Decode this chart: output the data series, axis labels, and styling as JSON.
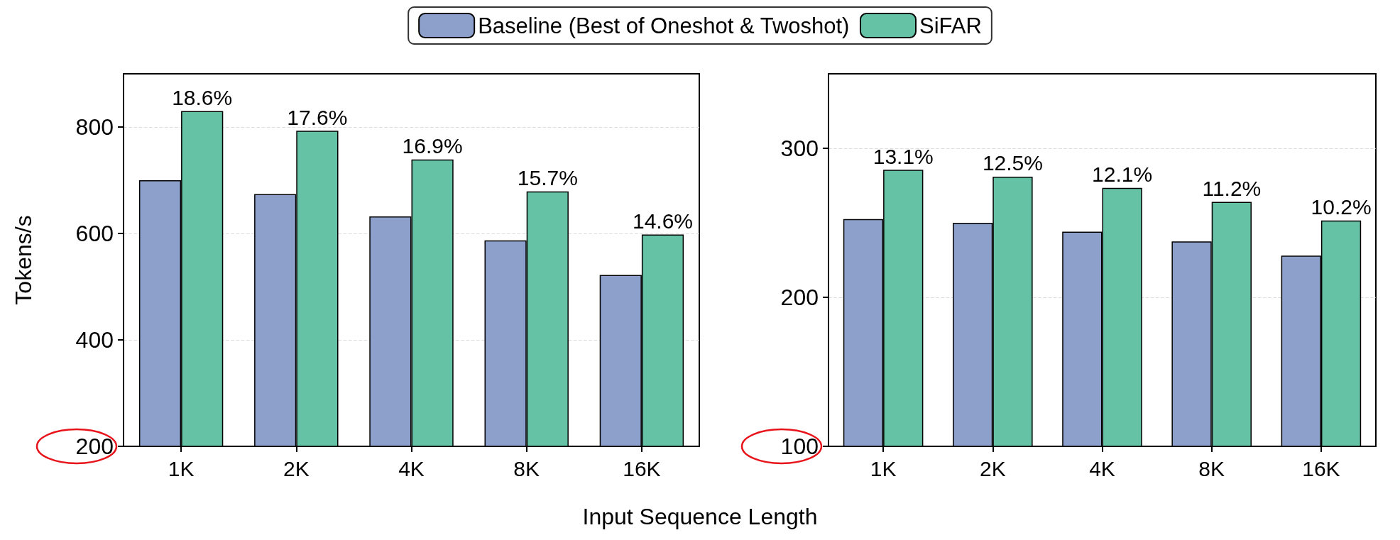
{
  "chart_data": [
    {
      "type": "bar",
      "ylabel": "Tokens/s",
      "xlabel": "Input Sequence Length",
      "categories": [
        "1K",
        "2K",
        "4K",
        "8K",
        "16K"
      ],
      "series": [
        {
          "name": "Baseline (Best of Oneshot & Twoshot)",
          "color": "#8da0cb",
          "values": [
            700,
            674,
            632,
            587,
            522
          ]
        },
        {
          "name": "SiFAR",
          "color": "#66c2a5",
          "values": [
            830,
            793,
            739,
            679,
            598
          ]
        }
      ],
      "annotations": [
        {
          "text": "18.6%",
          "x": "1K",
          "y": 830
        },
        {
          "text": "17.6%",
          "x": "2K",
          "y": 793
        },
        {
          "text": "16.9%",
          "x": "4K",
          "y": 739
        },
        {
          "text": "15.7%",
          "x": "8K",
          "y": 679
        },
        {
          "text": "14.6%",
          "x": "16K",
          "y": 598
        }
      ],
      "ylim": [
        200,
        900
      ],
      "yticks": [
        200,
        400,
        600,
        800
      ],
      "grid": "y",
      "legend": "top"
    },
    {
      "type": "bar",
      "categories": [
        "1K",
        "2K",
        "4K",
        "8K",
        "16K"
      ],
      "series": [
        {
          "color": "#8da0cb",
          "values": [
            252.5,
            250,
            244,
            237.5,
            228
          ]
        },
        {
          "color": "#66c2a5",
          "values": [
            285.6,
            281,
            273.5,
            264,
            251.5
          ]
        }
      ],
      "annotations": [
        {
          "text": "13.1%",
          "x": "1K",
          "y": 285.6
        },
        {
          "text": "12.5%",
          "x": "2K",
          "y": 281
        },
        {
          "text": "12.1%",
          "x": "4K",
          "y": 273.5
        },
        {
          "text": "11.2%",
          "x": "8K",
          "y": 264
        },
        {
          "text": "10.2%",
          "x": "16K",
          "y": 251.5
        }
      ],
      "ylim": [
        100,
        350
      ],
      "yticks": [
        100,
        200,
        300
      ],
      "grid": "y",
      "legend": false
    }
  ]
}
